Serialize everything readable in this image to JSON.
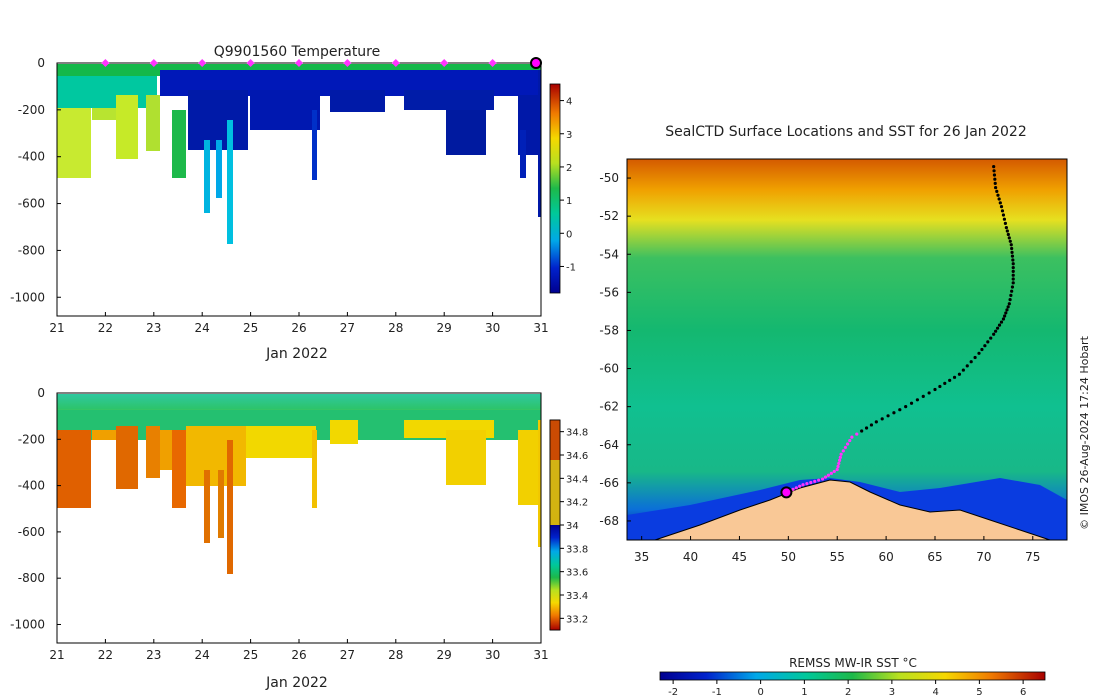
{
  "chart_data": [
    {
      "type": "heatmap",
      "title": "Q9901560  Temperature",
      "xlabel": "Jan 2022",
      "x_ticks": [
        "21",
        "22",
        "23",
        "24",
        "25",
        "26",
        "27",
        "28",
        "29",
        "30",
        "31"
      ],
      "xlim": [
        21,
        31
      ],
      "ylim": [
        -1080,
        0
      ],
      "y_ticks": [
        "0",
        "-200",
        "-400",
        "-600",
        "-800",
        "-1000"
      ],
      "y_tick_values": [
        0,
        -200,
        -400,
        -600,
        -800,
        -1000
      ],
      "colorbar_ticks": [
        "4",
        "3",
        "2",
        "1",
        "0",
        "-1"
      ],
      "colorbar_range": [
        -1.8,
        4.5
      ],
      "surface_markers_day": [
        22,
        23,
        24,
        25,
        26,
        27,
        28,
        29,
        30
      ],
      "current_position_day": 31
    },
    {
      "type": "heatmap",
      "title": "",
      "xlabel": "Jan 2022",
      "x_ticks": [
        "21",
        "22",
        "23",
        "24",
        "25",
        "26",
        "27",
        "28",
        "29",
        "30",
        "31"
      ],
      "xlim": [
        21,
        31
      ],
      "ylim": [
        -1080,
        0
      ],
      "y_ticks": [
        "0",
        "-200",
        "-400",
        "-600",
        "-800",
        "-1000"
      ],
      "y_tick_values": [
        0,
        -200,
        -400,
        -600,
        -800,
        -1000
      ],
      "colorbar_ticks": [
        "34.8",
        "34.6",
        "34.4",
        "34.2",
        "34",
        "33.8",
        "33.6",
        "33.4",
        "33.2"
      ],
      "colorbar_range": [
        33.1,
        34.9
      ]
    },
    {
      "type": "heatmap",
      "title": "SealCTD Surface Locations and SST for 26 Jan 2022",
      "x_ticks": [
        "35",
        "40",
        "45",
        "50",
        "55",
        "60",
        "65",
        "70",
        "75"
      ],
      "x_tick_values": [
        35,
        40,
        45,
        50,
        55,
        60,
        65,
        70,
        75
      ],
      "xlim": [
        33.5,
        78.5
      ],
      "y_ticks": [
        "-50",
        "-52",
        "-54",
        "-56",
        "-58",
        "-60",
        "-62",
        "-64",
        "-66",
        "-68"
      ],
      "y_tick_values": [
        -50,
        -52,
        -54,
        -56,
        -58,
        -60,
        -62,
        -64,
        -66,
        -68
      ],
      "ylim": [
        -69,
        -49
      ],
      "colorbar_label": "REMSS MW-IR SST °C",
      "colorbar_ticks": [
        "-2",
        "-1",
        "0",
        "1",
        "2",
        "3",
        "4",
        "5",
        "6"
      ],
      "colorbar_range": [
        -2.3,
        6.5
      ],
      "track_start": {
        "lon": 49.8,
        "lat": -66.5
      }
    }
  ],
  "credit": "© IMOS 26-Aug-2024 17:24 Hobart"
}
